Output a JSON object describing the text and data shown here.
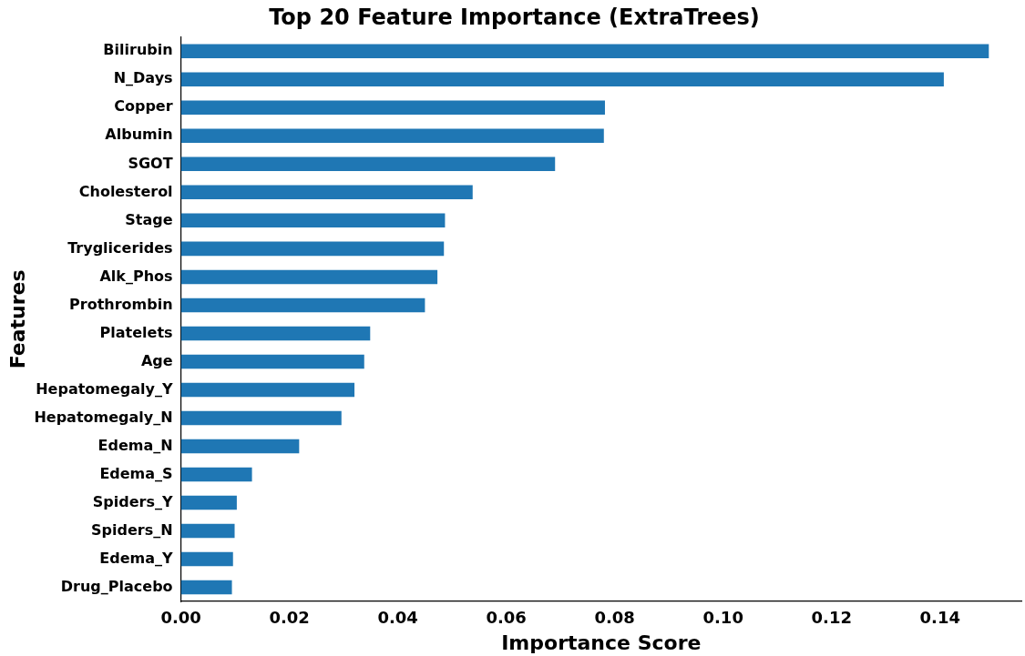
{
  "chart_data": {
    "type": "bar",
    "orientation": "horizontal",
    "title": "Top 20 Feature Importance (ExtraTrees)",
    "xlabel": "Importance Score",
    "ylabel": "Features",
    "categories": [
      "Bilirubin",
      "N_Days",
      "Copper",
      "Albumin",
      "SGOT",
      "Cholesterol",
      "Stage",
      "Tryglicerides",
      "Alk_Phos",
      "Prothrombin",
      "Platelets",
      "Age",
      "Hepatomegaly_Y",
      "Hepatomegaly_N",
      "Edema_N",
      "Edema_S",
      "Spiders_Y",
      "Spiders_N",
      "Edema_Y",
      "Drug_Placebo"
    ],
    "values": [
      0.149,
      0.1407,
      0.0782,
      0.078,
      0.069,
      0.0538,
      0.0487,
      0.0485,
      0.0473,
      0.045,
      0.0349,
      0.0338,
      0.032,
      0.0296,
      0.0218,
      0.0131,
      0.0103,
      0.0099,
      0.0096,
      0.0094
    ],
    "color": "#1f77b4",
    "xlim": [
      0,
      0.155
    ],
    "xticks": [
      {
        "value": 0,
        "label": "0.00"
      },
      {
        "value": 0.02,
        "label": "0.02"
      },
      {
        "value": 0.04,
        "label": "0.04"
      },
      {
        "value": 0.06,
        "label": "0.06"
      },
      {
        "value": 0.08,
        "label": "0.08"
      },
      {
        "value": 0.1,
        "label": "0.10"
      },
      {
        "value": 0.12,
        "label": "0.12"
      },
      {
        "value": 0.14,
        "label": "0.14"
      }
    ],
    "grid": false,
    "legend": false
  }
}
